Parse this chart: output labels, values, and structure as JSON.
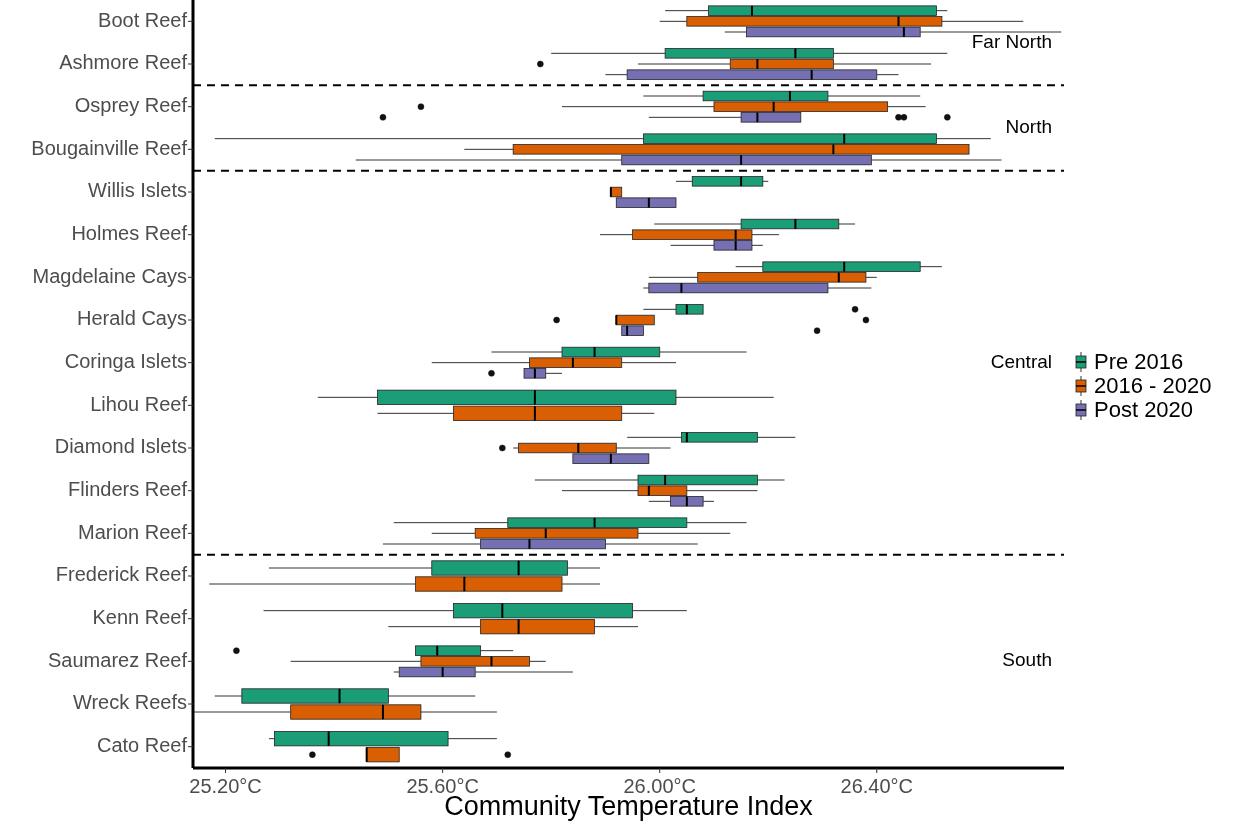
{
  "chart_data": {
    "type": "box",
    "orientation": "horizontal",
    "xlabel": "Community Temperature Index",
    "categories": [
      "Boot Reef",
      "Ashmore Reef",
      "Osprey Reef",
      "Bougainville Reef",
      "Willis Islets",
      "Holmes Reef",
      "Magdelaine Cays",
      "Herald Cays",
      "Coringa Islets",
      "Lihou Reef",
      "Diamond Islets",
      "Flinders Reef",
      "Marion Reef",
      "Frederick Reef",
      "Kenn Reef",
      "Saumarez Reef",
      "Wreck Reefs",
      "Cato Reef"
    ],
    "xlim": [
      25.14,
      26.745
    ],
    "xticks": [
      {
        "value": 25.2,
        "label": "25.20°C"
      },
      {
        "value": 25.6,
        "label": "25.60°C"
      },
      {
        "value": 26.0,
        "label": "26.00°C"
      },
      {
        "value": 26.4,
        "label": "26.40°C"
      }
    ],
    "legend": "right",
    "grid": false,
    "annotations": [
      "Far North",
      "North",
      "Central",
      "South"
    ],
    "series": [
      {
        "name": "Pre 2016",
        "color": "#1b9e77",
        "boxes": [
          {
            "low": 26.01,
            "q1": 26.09,
            "median": 26.17,
            "q3": 26.51,
            "high": 26.53
          },
          {
            "low": 25.8,
            "q1": 26.01,
            "median": 26.25,
            "q3": 26.32,
            "high": 26.53
          },
          {
            "low": 25.97,
            "q1": 26.08,
            "median": 26.24,
            "q3": 26.31,
            "high": 26.48
          },
          {
            "low": 25.18,
            "q1": 25.97,
            "median": 26.34,
            "q3": 26.51,
            "high": 26.61
          },
          {
            "low": 26.03,
            "q1": 26.06,
            "median": 26.15,
            "q3": 26.19,
            "high": 26.2
          },
          {
            "low": 25.99,
            "q1": 26.15,
            "median": 26.25,
            "q3": 26.33,
            "high": 26.36
          },
          {
            "low": 26.14,
            "q1": 26.19,
            "median": 26.34,
            "q3": 26.48,
            "high": 26.52
          },
          {
            "low": 25.97,
            "q1": 26.03,
            "median": 26.05,
            "q3": 26.08,
            "high": 26.08,
            "outliers": [
              26.36
            ]
          },
          {
            "low": 25.69,
            "q1": 25.82,
            "median": 25.88,
            "q3": 26.0,
            "high": 26.16
          },
          {
            "low": 25.37,
            "q1": 25.48,
            "median": 25.77,
            "q3": 26.03,
            "high": 26.21
          },
          {
            "low": 25.94,
            "q1": 26.04,
            "median": 26.05,
            "q3": 26.18,
            "high": 26.25
          },
          {
            "low": 25.77,
            "q1": 25.96,
            "median": 26.01,
            "q3": 26.18,
            "high": 26.23
          },
          {
            "low": 25.51,
            "q1": 25.72,
            "median": 25.88,
            "q3": 26.05,
            "high": 26.16
          },
          {
            "low": 25.28,
            "q1": 25.58,
            "median": 25.74,
            "q3": 25.83,
            "high": 25.89
          },
          {
            "low": 25.27,
            "q1": 25.62,
            "median": 25.71,
            "q3": 25.95,
            "high": 26.05
          },
          {
            "low": 25.55,
            "q1": 25.55,
            "median": 25.59,
            "q3": 25.67,
            "high": 25.73,
            "outliers": [
              25.22
            ]
          },
          {
            "low": 25.18,
            "q1": 25.23,
            "median": 25.41,
            "q3": 25.5,
            "high": 25.66
          },
          {
            "low": 25.28,
            "q1": 25.29,
            "median": 25.39,
            "q3": 25.61,
            "high": 25.7
          }
        ]
      },
      {
        "name": "2016 - 2020",
        "color": "#d95f02",
        "boxes": [
          {
            "low": 26.0,
            "q1": 26.05,
            "median": 26.44,
            "q3": 26.52,
            "high": 26.67
          },
          {
            "low": 25.96,
            "q1": 26.13,
            "median": 26.18,
            "q3": 26.32,
            "high": 26.5,
            "outliers": [
              25.78
            ]
          },
          {
            "low": 25.82,
            "q1": 26.1,
            "median": 26.21,
            "q3": 26.42,
            "high": 26.49,
            "outliers": [
              25.56
            ]
          },
          {
            "low": 25.64,
            "q1": 25.73,
            "median": 26.32,
            "q3": 26.57,
            "high": 26.57
          },
          {
            "low": 25.91,
            "q1": 25.91,
            "median": 25.91,
            "q3": 25.93,
            "high": 25.93
          },
          {
            "low": 25.89,
            "q1": 25.95,
            "median": 26.14,
            "q3": 26.17,
            "high": 26.22
          },
          {
            "low": 25.98,
            "q1": 26.07,
            "median": 26.33,
            "q3": 26.38,
            "high": 26.4
          },
          {
            "low": 25.92,
            "q1": 25.92,
            "median": 25.92,
            "q3": 25.99,
            "high": 25.99,
            "outliers": [
              25.81,
              26.38
            ]
          },
          {
            "low": 25.58,
            "q1": 25.76,
            "median": 25.84,
            "q3": 25.93,
            "high": 26.03
          },
          {
            "low": 25.48,
            "q1": 25.62,
            "median": 25.77,
            "q3": 25.93,
            "high": 25.99
          },
          {
            "low": 25.73,
            "q1": 25.74,
            "median": 25.85,
            "q3": 25.92,
            "high": 26.02,
            "outliers": [
              25.71
            ]
          },
          {
            "low": 25.82,
            "q1": 25.96,
            "median": 25.98,
            "q3": 26.05,
            "high": 26.18
          },
          {
            "low": 25.58,
            "q1": 25.66,
            "median": 25.79,
            "q3": 25.96,
            "high": 26.13
          },
          {
            "low": 25.17,
            "q1": 25.55,
            "median": 25.64,
            "q3": 25.82,
            "high": 25.89
          },
          {
            "low": 25.5,
            "q1": 25.67,
            "median": 25.74,
            "q3": 25.88,
            "high": 25.96
          },
          {
            "low": 25.32,
            "q1": 25.56,
            "median": 25.69,
            "q3": 25.76,
            "high": 25.79
          },
          {
            "low": 25.14,
            "q1": 25.32,
            "median": 25.49,
            "q3": 25.56,
            "high": 25.7
          },
          {
            "low": 25.46,
            "q1": 25.46,
            "median": 25.46,
            "q3": 25.52,
            "high": 25.52,
            "outliers": [
              25.36,
              25.72
            ]
          }
        ]
      },
      {
        "name": "Post 2020",
        "color": "#7570b3",
        "boxes": [
          {
            "low": 26.12,
            "q1": 26.16,
            "median": 26.45,
            "q3": 26.48,
            "high": 26.74
          },
          {
            "low": 25.9,
            "q1": 25.94,
            "median": 26.28,
            "q3": 26.4,
            "high": 26.44
          },
          {
            "low": 25.98,
            "q1": 26.15,
            "median": 26.18,
            "q3": 26.26,
            "high": 26.26,
            "outliers": [
              25.49,
              26.44,
              26.45,
              26.53
            ]
          },
          {
            "low": 25.44,
            "q1": 25.93,
            "median": 26.15,
            "q3": 26.39,
            "high": 26.63
          },
          {
            "low": 25.92,
            "q1": 25.92,
            "median": 25.98,
            "q3": 26.03,
            "high": 26.03
          },
          {
            "low": 26.02,
            "q1": 26.1,
            "median": 26.14,
            "q3": 26.17,
            "high": 26.19
          },
          {
            "low": 25.97,
            "q1": 25.98,
            "median": 26.04,
            "q3": 26.31,
            "high": 26.39
          },
          {
            "low": 25.93,
            "q1": 25.93,
            "median": 25.94,
            "q3": 25.97,
            "high": 25.97,
            "outliers": [
              26.29
            ]
          },
          {
            "low": 25.75,
            "q1": 25.75,
            "median": 25.77,
            "q3": 25.79,
            "high": 25.82,
            "outliers": [
              25.69
            ]
          },
          null,
          {
            "low": 25.84,
            "q1": 25.84,
            "median": 25.91,
            "q3": 25.98,
            "high": 25.98
          },
          {
            "low": 25.98,
            "q1": 26.02,
            "median": 26.05,
            "q3": 26.08,
            "high": 26.1
          },
          {
            "low": 25.49,
            "q1": 25.67,
            "median": 25.76,
            "q3": 25.9,
            "high": 26.07
          },
          null,
          null,
          {
            "low": 25.51,
            "q1": 25.52,
            "median": 25.6,
            "q3": 25.66,
            "high": 25.84
          },
          null,
          null
        ]
      }
    ]
  }
}
